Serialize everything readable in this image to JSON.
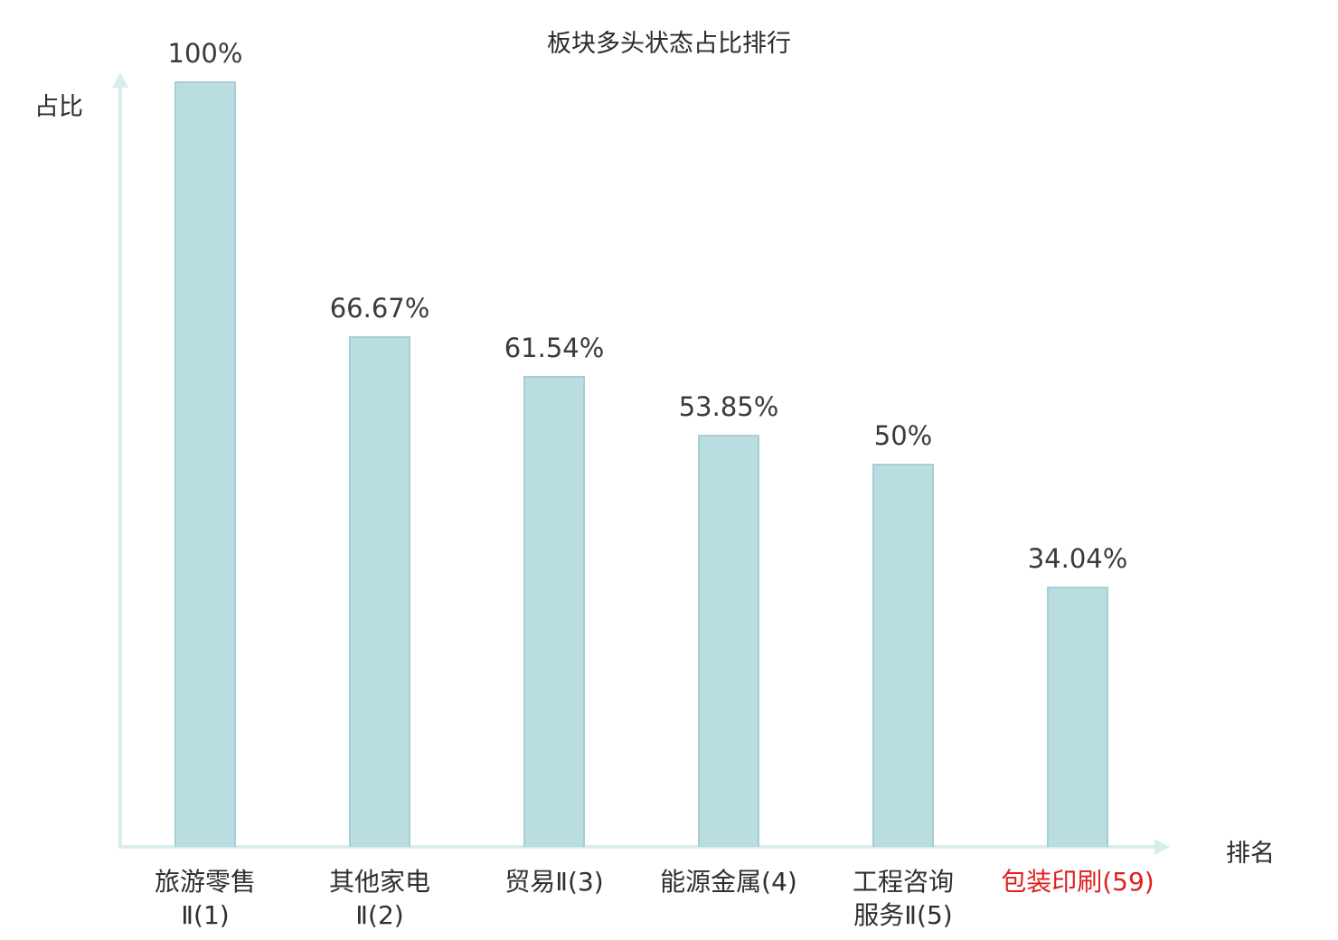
{
  "title": "板块多头状态占比排行",
  "axes": {
    "y_label": "占比",
    "x_label": "排名"
  },
  "colors": {
    "bar_fill": "#b9dde1",
    "bar_border": "#a6ced4",
    "axis": "#d8eeec",
    "text": "#2f2f2f",
    "highlight_text": "#e01f1f"
  },
  "chart_data": {
    "type": "bar",
    "title": "板块多头状态占比排行",
    "xlabel": "排名",
    "ylabel": "占比",
    "ylim": [
      0,
      100
    ],
    "grid": false,
    "legend": "none",
    "categories": [
      "旅游零售Ⅱ(1)",
      "其他家电Ⅱ(2)",
      "贸易Ⅱ(3)",
      "能源金属(4)",
      "工程咨询服务Ⅱ(5)",
      "包装印刷(59)"
    ],
    "category_lines": [
      [
        "旅游零售",
        "Ⅱ(1)"
      ],
      [
        "其他家电",
        "Ⅱ(2)"
      ],
      [
        "贸易Ⅱ(3)"
      ],
      [
        "能源金属(4)"
      ],
      [
        "工程咨询",
        "服务Ⅱ(5)"
      ],
      [
        "包装印刷(59)"
      ]
    ],
    "values": [
      100,
      66.67,
      61.54,
      53.85,
      50,
      34.04
    ],
    "value_labels": [
      "100%",
      "66.67%",
      "61.54%",
      "53.85%",
      "50%",
      "34.04%"
    ],
    "highlight_index": 5
  }
}
